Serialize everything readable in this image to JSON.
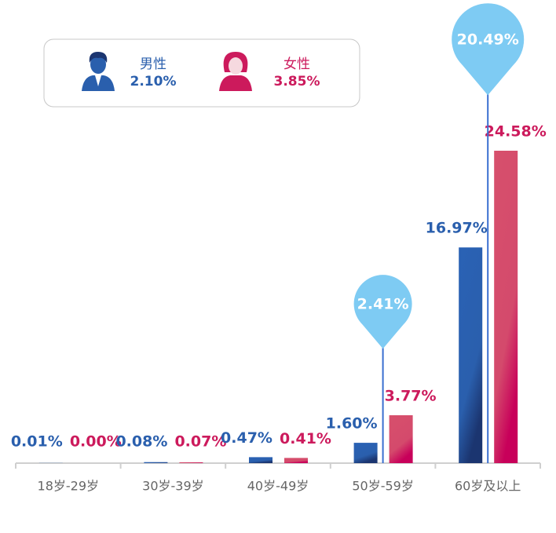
{
  "chart_data": {
    "type": "bar",
    "categories": [
      "18岁-29岁",
      "30岁-39岁",
      "40岁-49岁",
      "50岁-59岁",
      "60岁及以上"
    ],
    "series": [
      {
        "name": "男性",
        "color": "#2a5fad",
        "total": 2.1,
        "total_label": "2.10%",
        "values": [
          0.01,
          0.08,
          0.47,
          1.6,
          16.97
        ],
        "value_labels": [
          "0.01%",
          "0.08%",
          "0.47%",
          "1.60%",
          "16.97%"
        ]
      },
      {
        "name": "女性",
        "color": "#cc1a5c",
        "total": 3.85,
        "total_label": "3.85%",
        "values": [
          0.0,
          0.07,
          0.41,
          3.77,
          24.58
        ],
        "value_labels": [
          "0.00%",
          "0.07%",
          "0.41%",
          "3.77%",
          "24.58%"
        ]
      }
    ],
    "pins": {
      "color": "#7ecbf3",
      "values": [
        null,
        null,
        null,
        2.41,
        20.49
      ],
      "value_labels": [
        null,
        null,
        null,
        "2.41%",
        "20.49%"
      ]
    }
  }
}
